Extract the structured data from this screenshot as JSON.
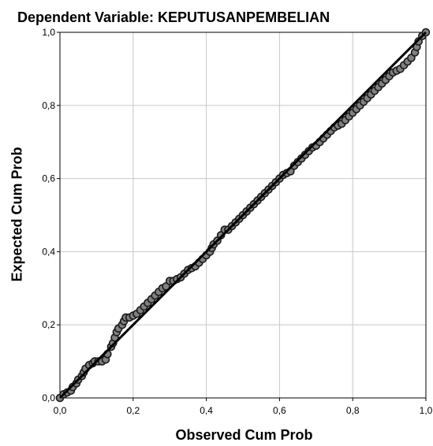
{
  "chart_data": {
    "type": "scatter",
    "title": "Dependent Variable: KEPUTUSANPEMBELIAN",
    "xlabel": "Observed Cum Prob",
    "ylabel": "Expected Cum Prob",
    "xlim": [
      0,
      1
    ],
    "ylim": [
      0,
      1
    ],
    "x_ticks": [
      "0,0",
      "0,2",
      "0,4",
      "0,6",
      "0,8",
      "1,0"
    ],
    "y_ticks": [
      "0,0",
      "0,2",
      "0,4",
      "0,6",
      "0,8",
      "1,0"
    ],
    "grid": true,
    "reference_line": {
      "from": [
        0,
        0
      ],
      "to": [
        1,
        1
      ]
    },
    "colors": {
      "point_fill": "#808080",
      "point_stroke": "#1a1a1a",
      "line": "#000000",
      "grid": "#c8c8c8"
    },
    "series": [
      {
        "points": [
          [
            0.0,
            0.0
          ],
          [
            0.01,
            0.01
          ],
          [
            0.02,
            0.015
          ],
          [
            0.03,
            0.02
          ],
          [
            0.035,
            0.03
          ],
          [
            0.045,
            0.04
          ],
          [
            0.05,
            0.05
          ],
          [
            0.06,
            0.06
          ],
          [
            0.065,
            0.07
          ],
          [
            0.07,
            0.08
          ],
          [
            0.08,
            0.09
          ],
          [
            0.09,
            0.095
          ],
          [
            0.095,
            0.1
          ],
          [
            0.105,
            0.1
          ],
          [
            0.115,
            0.1
          ],
          [
            0.125,
            0.105
          ],
          [
            0.13,
            0.12
          ],
          [
            0.14,
            0.14
          ],
          [
            0.145,
            0.15
          ],
          [
            0.15,
            0.165
          ],
          [
            0.155,
            0.18
          ],
          [
            0.16,
            0.19
          ],
          [
            0.17,
            0.2
          ],
          [
            0.175,
            0.21
          ],
          [
            0.18,
            0.22
          ],
          [
            0.19,
            0.22
          ],
          [
            0.2,
            0.225
          ],
          [
            0.21,
            0.23
          ],
          [
            0.22,
            0.24
          ],
          [
            0.23,
            0.25
          ],
          [
            0.24,
            0.26
          ],
          [
            0.25,
            0.27
          ],
          [
            0.26,
            0.28
          ],
          [
            0.27,
            0.29
          ],
          [
            0.28,
            0.3
          ],
          [
            0.29,
            0.305
          ],
          [
            0.3,
            0.32
          ],
          [
            0.31,
            0.32
          ],
          [
            0.32,
            0.325
          ],
          [
            0.33,
            0.33
          ],
          [
            0.34,
            0.34
          ],
          [
            0.35,
            0.35
          ],
          [
            0.36,
            0.355
          ],
          [
            0.37,
            0.36
          ],
          [
            0.38,
            0.37
          ],
          [
            0.39,
            0.38
          ],
          [
            0.4,
            0.39
          ],
          [
            0.41,
            0.4
          ],
          [
            0.415,
            0.41
          ],
          [
            0.42,
            0.42
          ],
          [
            0.43,
            0.43
          ],
          [
            0.44,
            0.445
          ],
          [
            0.45,
            0.46
          ],
          [
            0.46,
            0.46
          ],
          [
            0.47,
            0.47
          ],
          [
            0.48,
            0.48
          ],
          [
            0.49,
            0.49
          ],
          [
            0.5,
            0.5
          ],
          [
            0.51,
            0.51
          ],
          [
            0.52,
            0.52
          ],
          [
            0.53,
            0.53
          ],
          [
            0.54,
            0.54
          ],
          [
            0.55,
            0.55
          ],
          [
            0.56,
            0.56
          ],
          [
            0.57,
            0.57
          ],
          [
            0.58,
            0.58
          ],
          [
            0.59,
            0.59
          ],
          [
            0.6,
            0.6
          ],
          [
            0.61,
            0.61
          ],
          [
            0.62,
            0.615
          ],
          [
            0.63,
            0.62
          ],
          [
            0.64,
            0.635
          ],
          [
            0.65,
            0.645
          ],
          [
            0.66,
            0.655
          ],
          [
            0.67,
            0.665
          ],
          [
            0.68,
            0.675
          ],
          [
            0.69,
            0.685
          ],
          [
            0.7,
            0.69
          ],
          [
            0.71,
            0.7
          ],
          [
            0.72,
            0.71
          ],
          [
            0.73,
            0.72
          ],
          [
            0.74,
            0.73
          ],
          [
            0.75,
            0.74
          ],
          [
            0.76,
            0.745
          ],
          [
            0.77,
            0.75
          ],
          [
            0.78,
            0.76
          ],
          [
            0.79,
            0.77
          ],
          [
            0.8,
            0.78
          ],
          [
            0.81,
            0.79
          ],
          [
            0.82,
            0.8
          ],
          [
            0.83,
            0.81
          ],
          [
            0.84,
            0.82
          ],
          [
            0.85,
            0.83
          ],
          [
            0.86,
            0.84
          ],
          [
            0.87,
            0.85
          ],
          [
            0.88,
            0.86
          ],
          [
            0.89,
            0.87
          ],
          [
            0.9,
            0.88
          ],
          [
            0.91,
            0.89
          ],
          [
            0.92,
            0.895
          ],
          [
            0.93,
            0.9
          ],
          [
            0.94,
            0.91
          ],
          [
            0.95,
            0.92
          ],
          [
            0.96,
            0.93
          ],
          [
            0.97,
            0.945
          ],
          [
            0.975,
            0.96
          ],
          [
            0.98,
            0.975
          ],
          [
            0.99,
            0.99
          ],
          [
            1.0,
            1.0
          ]
        ]
      }
    ]
  }
}
